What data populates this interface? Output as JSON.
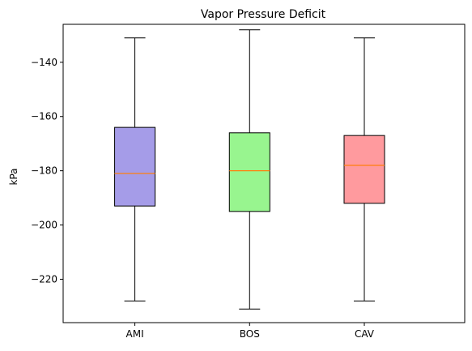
{
  "chart_data": {
    "type": "box",
    "title": "Vapor Pressure Deficit",
    "xlabel": "",
    "ylabel": "kPa",
    "ylim": [
      -236,
      -126
    ],
    "yticks": [
      -140,
      -160,
      -180,
      -200,
      -220
    ],
    "ytick_labels": [
      "−140",
      "−160",
      "−180",
      "−200",
      "−220"
    ],
    "categories": [
      "AMI",
      "BOS",
      "CAV"
    ],
    "grid": false,
    "boxes": [
      {
        "category": "AMI",
        "whisker_low": -228,
        "q1": -193,
        "median": -181,
        "q3": -164,
        "whisker_high": -131,
        "color": "#a59ce8"
      },
      {
        "category": "BOS",
        "whisker_low": -231,
        "q1": -195,
        "median": -180,
        "q3": -166,
        "whisker_high": -128,
        "color": "#98f58f"
      },
      {
        "category": "CAV",
        "whisker_low": -228,
        "q1": -192,
        "median": -178,
        "q3": -167,
        "whisker_high": -131,
        "color": "#ff9a9e"
      }
    ],
    "median_color": "#ff7f0e"
  }
}
